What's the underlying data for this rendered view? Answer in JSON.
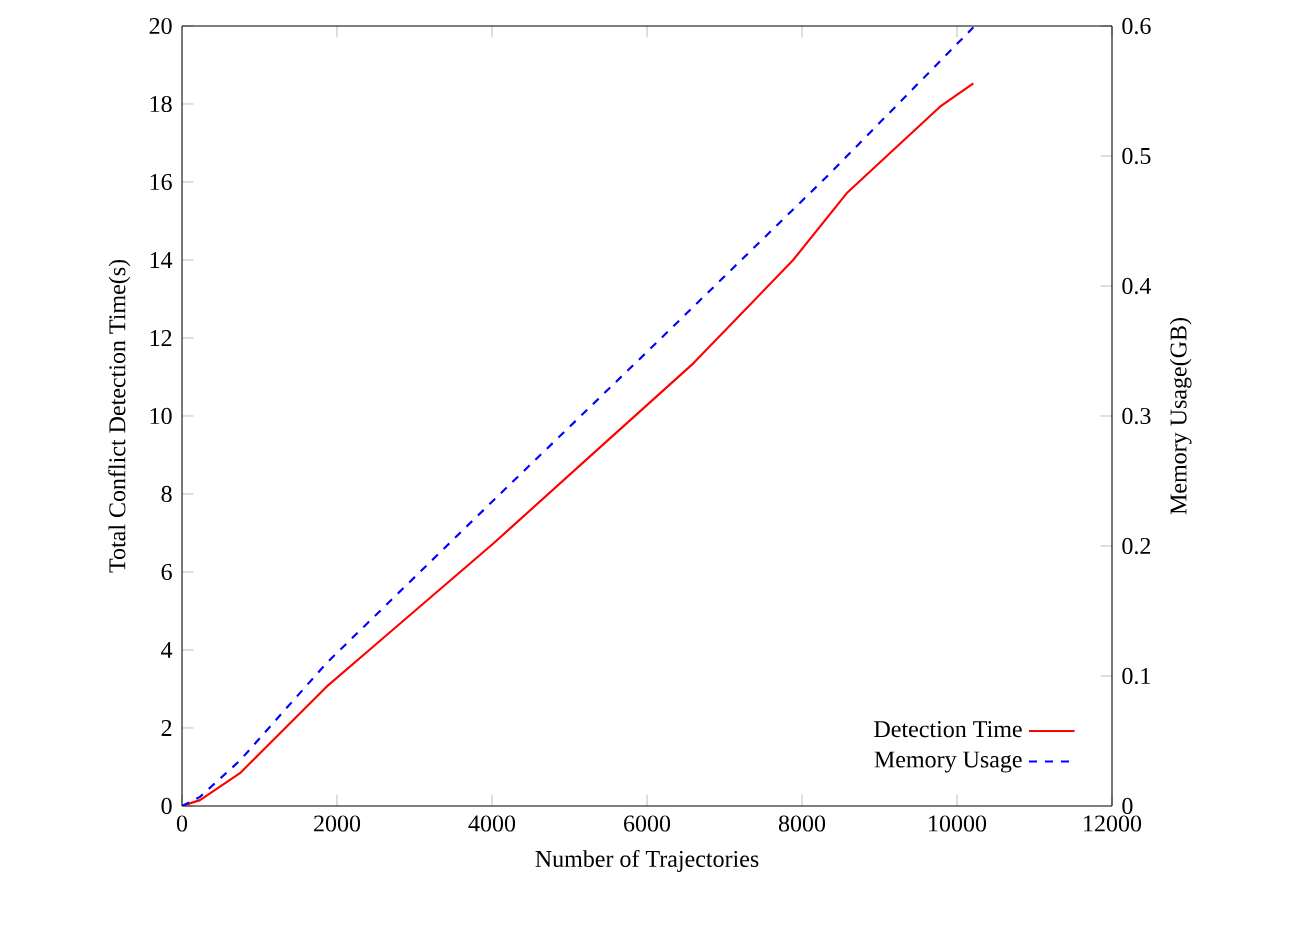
{
  "chart_data": {
    "type": "line",
    "xlabel": "Number of Trajectories",
    "ylabel": "Total Conflict Detection Time(s)",
    "y2label": "Memory Usage(GB)",
    "xlim": [
      0,
      12000
    ],
    "xticks": [
      0,
      2000,
      4000,
      6000,
      8000,
      10000,
      12000
    ],
    "ylim": [
      0,
      20
    ],
    "yticks": [
      0,
      2,
      4,
      6,
      8,
      10,
      12,
      14,
      16,
      18,
      20
    ],
    "y2lim": [
      0,
      0.6
    ],
    "y2ticks": [
      0,
      0.1,
      0.2,
      0.3,
      0.4,
      0.5,
      0.6
    ],
    "legend": "bottom right",
    "series": [
      {
        "name": "Detection Time",
        "color": "#ff0000",
        "line_style": "solid",
        "x": [
          0,
          232,
          748,
          1866,
          2469,
          4017,
          5307,
          6598,
          7886,
          8576,
          9178,
          9781,
          10211
        ],
        "values": [
          0,
          0.15,
          0.84,
          3.06,
          4.09,
          6.73,
          9.04,
          11.35,
          14.0,
          15.71,
          16.82,
          17.93,
          18.53
        ]
      },
      {
        "name": "Memory Usage",
        "color": "#0000ff",
        "line_style": "dashed",
        "axis": "y2",
        "x": [
          0,
          232,
          748,
          1866,
          4017,
          6168,
          8318,
          10211
        ],
        "values": [
          0,
          0.007,
          0.035,
          0.11,
          0.235,
          0.359,
          0.484,
          0.599
        ]
      }
    ]
  }
}
